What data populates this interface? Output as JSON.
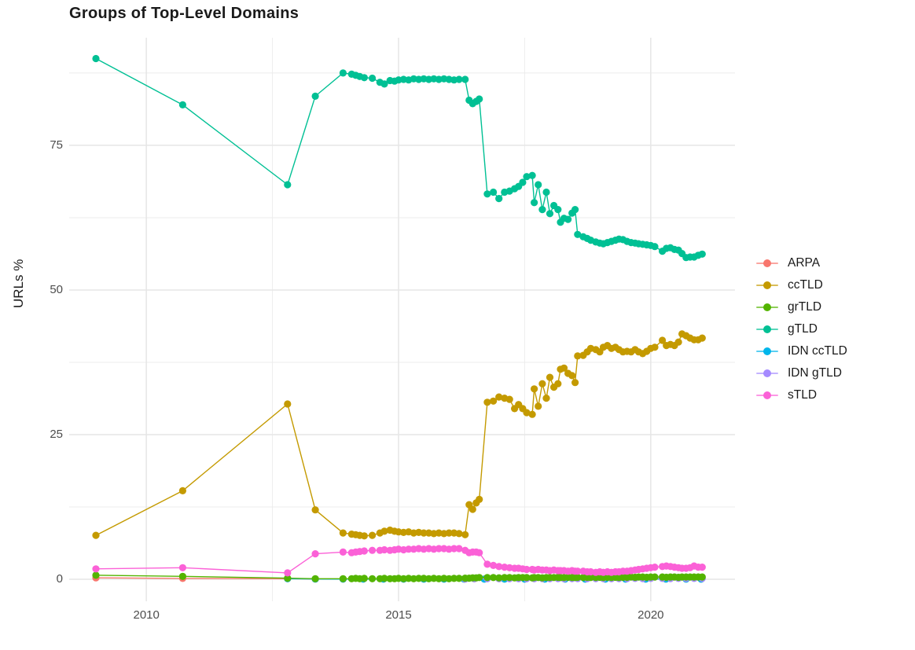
{
  "axes": {
    "x_tick_labels": [
      "2010",
      "2015",
      "2020"
    ],
    "y_tick_labels": [
      "0",
      "25",
      "50",
      "75"
    ]
  },
  "chart_data": {
    "type": "line",
    "title": "Groups of Top-Level Domains",
    "xlabel": "",
    "ylabel": "URLs %",
    "xlim": [
      2008.47,
      2021.67
    ],
    "ylim": [
      -3.8,
      93.6
    ],
    "x_major_ticks": [
      2010,
      2015,
      2020
    ],
    "x_minor_ticks": [
      2012.5,
      2017.5
    ],
    "y_major_ticks": [
      0,
      25,
      50,
      75
    ],
    "y_minor_ticks": [
      12.5,
      37.5,
      62.5,
      87.5
    ],
    "grid": true,
    "legend_position": "right",
    "grid_major_color": "#E6E6E6",
    "grid_minor_color": "#ECECEC",
    "draw_order": [
      "ARPA",
      "IDN ccTLD",
      "IDN gTLD",
      "ccTLD",
      "grTLD",
      "gTLD",
      "sTLD"
    ],
    "series": [
      {
        "name": "ARPA",
        "color": "#F8766D",
        "x": [
          2009.0,
          2010.72,
          2012.8,
          2013.35,
          2013.9,
          2014.3,
          2014.7,
          2015.1,
          2015.5,
          2015.9,
          2016.3,
          2016.7,
          2017.1,
          2017.5,
          2017.9,
          2018.3,
          2018.7,
          2019.1,
          2019.5,
          2019.9,
          2020.3,
          2020.7,
          2021.0
        ],
        "y": [
          0.25,
          0.15,
          0.1,
          0.05,
          0.05,
          0.05,
          0.05,
          0.05,
          0.05,
          0.05,
          0.05,
          0.05,
          0.05,
          0.05,
          0.05,
          0.05,
          0.05,
          0.05,
          0.05,
          0.05,
          0.05,
          0.05,
          0.05
        ]
      },
      {
        "name": "ccTLD",
        "color": "#C49A00",
        "x": [
          2009.0,
          2010.72,
          2012.8,
          2013.35,
          2013.9,
          2014.07,
          2014.15,
          2014.23,
          2014.32,
          2014.48,
          2014.63,
          2014.72,
          2014.83,
          2014.92,
          2015.0,
          2015.1,
          2015.2,
          2015.3,
          2015.4,
          2015.5,
          2015.6,
          2015.7,
          2015.8,
          2015.9,
          2016.0,
          2016.1,
          2016.2,
          2016.32,
          2016.4,
          2016.47,
          2016.54,
          2016.6,
          2016.76,
          2016.88,
          2016.99,
          2017.1,
          2017.2,
          2017.3,
          2017.38,
          2017.46,
          2017.54,
          2017.65,
          2017.69,
          2017.77,
          2017.85,
          2017.93,
          2018.0,
          2018.08,
          2018.16,
          2018.21,
          2018.28,
          2018.36,
          2018.44,
          2018.5,
          2018.55,
          2018.66,
          2018.74,
          2018.81,
          2018.91,
          2018.99,
          2019.06,
          2019.14,
          2019.22,
          2019.3,
          2019.37,
          2019.45,
          2019.53,
          2019.61,
          2019.69,
          2019.76,
          2019.84,
          2019.92,
          2020.0,
          2020.08,
          2020.23,
          2020.31,
          2020.39,
          2020.47,
          2020.55,
          2020.62,
          2020.7,
          2020.78,
          2020.86,
          2020.94,
          2021.02
        ],
        "y": [
          7.6,
          15.3,
          30.3,
          12.0,
          8.0,
          7.8,
          7.7,
          7.6,
          7.5,
          7.6,
          8.0,
          8.3,
          8.5,
          8.3,
          8.2,
          8.1,
          8.2,
          8.0,
          8.1,
          8.0,
          8.0,
          7.9,
          8.0,
          7.9,
          8.0,
          8.0,
          7.9,
          7.7,
          12.9,
          12.1,
          13.2,
          13.8,
          30.6,
          30.8,
          31.5,
          31.3,
          31.1,
          29.5,
          30.2,
          29.5,
          28.8,
          28.5,
          32.9,
          29.9,
          33.8,
          31.3,
          34.9,
          33.2,
          33.8,
          36.3,
          36.5,
          35.6,
          35.2,
          34.0,
          38.6,
          38.7,
          39.3,
          39.9,
          39.7,
          39.3,
          40.1,
          40.4,
          39.9,
          40.1,
          39.7,
          39.3,
          39.4,
          39.3,
          39.7,
          39.3,
          39.0,
          39.4,
          39.9,
          40.1,
          41.3,
          40.4,
          40.6,
          40.4,
          41.0,
          42.4,
          42.1,
          41.7,
          41.4,
          41.4,
          41.7
        ]
      },
      {
        "name": "grTLD",
        "color": "#53B400",
        "x": [
          2009.0,
          2010.72,
          2012.8,
          2013.35,
          2013.9,
          2014.07,
          2014.15,
          2014.23,
          2014.32,
          2014.48,
          2014.63,
          2014.72,
          2014.83,
          2014.92,
          2015.0,
          2015.1,
          2015.2,
          2015.3,
          2015.4,
          2015.5,
          2015.6,
          2015.7,
          2015.8,
          2015.9,
          2016.0,
          2016.1,
          2016.2,
          2016.32,
          2016.4,
          2016.47,
          2016.54,
          2016.6,
          2016.76,
          2016.88,
          2016.99,
          2017.1,
          2017.2,
          2017.3,
          2017.38,
          2017.46,
          2017.54,
          2017.65,
          2017.69,
          2017.77,
          2017.85,
          2017.93,
          2018.0,
          2018.08,
          2018.16,
          2018.21,
          2018.28,
          2018.36,
          2018.44,
          2018.5,
          2018.55,
          2018.66,
          2018.74,
          2018.81,
          2018.91,
          2018.99,
          2019.06,
          2019.14,
          2019.22,
          2019.3,
          2019.37,
          2019.45,
          2019.53,
          2019.61,
          2019.69,
          2019.76,
          2019.84,
          2019.92,
          2020.0,
          2020.08,
          2020.23,
          2020.31,
          2020.39,
          2020.47,
          2020.55,
          2020.62,
          2020.7,
          2020.78,
          2020.86,
          2020.94,
          2021.02
        ],
        "y": [
          0.7,
          0.5,
          0.2,
          0.1,
          0.1,
          0.1,
          0.15,
          0.1,
          0.15,
          0.1,
          0.1,
          0.15,
          0.1,
          0.1,
          0.15,
          0.1,
          0.15,
          0.1,
          0.15,
          0.15,
          0.1,
          0.15,
          0.1,
          0.15,
          0.1,
          0.15,
          0.15,
          0.2,
          0.2,
          0.25,
          0.25,
          0.3,
          0.3,
          0.3,
          0.25,
          0.3,
          0.3,
          0.25,
          0.3,
          0.3,
          0.3,
          0.25,
          0.3,
          0.3,
          0.25,
          0.3,
          0.3,
          0.3,
          0.35,
          0.3,
          0.3,
          0.35,
          0.3,
          0.3,
          0.35,
          0.3,
          0.35,
          0.3,
          0.3,
          0.35,
          0.3,
          0.35,
          0.3,
          0.35,
          0.3,
          0.35,
          0.35,
          0.4,
          0.35,
          0.4,
          0.4,
          0.35,
          0.4,
          0.4,
          0.4,
          0.35,
          0.4,
          0.4,
          0.35,
          0.4,
          0.4,
          0.4,
          0.4,
          0.4,
          0.4
        ]
      },
      {
        "name": "gTLD",
        "color": "#00C094",
        "x": [
          2009.0,
          2010.72,
          2012.8,
          2013.35,
          2013.9,
          2014.07,
          2014.15,
          2014.23,
          2014.32,
          2014.48,
          2014.63,
          2014.72,
          2014.83,
          2014.92,
          2015.0,
          2015.1,
          2015.2,
          2015.3,
          2015.4,
          2015.5,
          2015.6,
          2015.7,
          2015.8,
          2015.9,
          2016.0,
          2016.1,
          2016.2,
          2016.32,
          2016.4,
          2016.47,
          2016.54,
          2016.6,
          2016.76,
          2016.88,
          2016.99,
          2017.1,
          2017.2,
          2017.3,
          2017.38,
          2017.46,
          2017.54,
          2017.65,
          2017.69,
          2017.77,
          2017.85,
          2017.93,
          2018.0,
          2018.08,
          2018.16,
          2018.21,
          2018.28,
          2018.36,
          2018.44,
          2018.5,
          2018.55,
          2018.66,
          2018.74,
          2018.81,
          2018.91,
          2018.99,
          2019.06,
          2019.14,
          2019.22,
          2019.3,
          2019.37,
          2019.45,
          2019.53,
          2019.61,
          2019.69,
          2019.76,
          2019.84,
          2019.92,
          2020.0,
          2020.08,
          2020.23,
          2020.31,
          2020.39,
          2020.47,
          2020.55,
          2020.62,
          2020.7,
          2020.78,
          2020.86,
          2020.94,
          2021.02
        ],
        "y": [
          90.0,
          82.0,
          68.2,
          83.5,
          87.5,
          87.3,
          87.1,
          86.9,
          86.7,
          86.6,
          85.9,
          85.6,
          86.2,
          86.1,
          86.3,
          86.4,
          86.3,
          86.5,
          86.4,
          86.5,
          86.4,
          86.5,
          86.4,
          86.5,
          86.4,
          86.3,
          86.4,
          86.4,
          82.8,
          82.2,
          82.6,
          83.0,
          66.6,
          66.9,
          65.8,
          66.9,
          67.1,
          67.5,
          67.9,
          68.6,
          69.6,
          69.8,
          65.1,
          68.2,
          63.9,
          66.9,
          63.2,
          64.6,
          63.9,
          61.7,
          62.4,
          62.2,
          63.3,
          63.9,
          59.6,
          59.2,
          58.9,
          58.6,
          58.3,
          58.1,
          58.0,
          58.2,
          58.4,
          58.6,
          58.8,
          58.7,
          58.4,
          58.2,
          58.1,
          58.0,
          57.9,
          57.8,
          57.7,
          57.5,
          56.7,
          57.2,
          57.3,
          57.0,
          56.9,
          56.3,
          55.6,
          55.7,
          55.7,
          56.0,
          56.2
        ]
      },
      {
        "name": "IDN ccTLD",
        "color": "#00B6EB",
        "x": [
          2012.8,
          2013.35,
          2013.9,
          2014.3,
          2014.7,
          2015.1,
          2015.5,
          2015.9,
          2016.3,
          2016.7,
          2017.1,
          2017.5,
          2017.9,
          2018.3,
          2018.7,
          2019.1,
          2019.5,
          2019.9,
          2020.3,
          2020.7,
          2021.0
        ],
        "y": [
          0.1,
          0.05,
          0.03,
          0.03,
          0.03,
          0.03,
          0.03,
          0.03,
          0.03,
          0.03,
          0.03,
          0.03,
          0.03,
          0.03,
          0.03,
          0.03,
          0.03,
          0.03,
          0.03,
          0.03,
          0.03
        ]
      },
      {
        "name": "IDN gTLD",
        "color": "#A58AFF",
        "x": [
          2016.32,
          2016.5,
          2016.76,
          2016.99,
          2017.2,
          2017.38,
          2017.54,
          2017.69,
          2017.85,
          2018.0,
          2018.16,
          2018.28,
          2018.44,
          2018.55,
          2018.74,
          2018.91,
          2019.06,
          2019.22,
          2019.37,
          2019.53,
          2019.69,
          2019.84,
          2020.0,
          2020.23,
          2020.39,
          2020.55,
          2020.7,
          2020.86,
          2021.02
        ],
        "y": [
          0.05,
          0.08,
          0.1,
          0.1,
          0.1,
          0.1,
          0.1,
          0.1,
          0.12,
          0.1,
          0.12,
          0.1,
          0.12,
          0.12,
          0.1,
          0.12,
          0.12,
          0.1,
          0.12,
          0.12,
          0.15,
          0.12,
          0.15,
          0.15,
          0.12,
          0.15,
          0.15,
          0.15,
          0.15
        ]
      },
      {
        "name": "sTLD",
        "color": "#FB61D7",
        "x": [
          2009.0,
          2010.72,
          2012.8,
          2013.35,
          2013.9,
          2014.07,
          2014.15,
          2014.23,
          2014.32,
          2014.48,
          2014.63,
          2014.72,
          2014.83,
          2014.92,
          2015.0,
          2015.1,
          2015.2,
          2015.3,
          2015.4,
          2015.5,
          2015.6,
          2015.7,
          2015.8,
          2015.9,
          2016.0,
          2016.1,
          2016.2,
          2016.32,
          2016.4,
          2016.47,
          2016.54,
          2016.6,
          2016.76,
          2016.88,
          2016.99,
          2017.1,
          2017.2,
          2017.3,
          2017.38,
          2017.46,
          2017.54,
          2017.65,
          2017.69,
          2017.77,
          2017.85,
          2017.93,
          2018.0,
          2018.08,
          2018.16,
          2018.21,
          2018.28,
          2018.36,
          2018.44,
          2018.5,
          2018.55,
          2018.66,
          2018.74,
          2018.81,
          2018.91,
          2018.99,
          2019.06,
          2019.14,
          2019.22,
          2019.3,
          2019.37,
          2019.45,
          2019.53,
          2019.61,
          2019.69,
          2019.76,
          2019.84,
          2019.92,
          2020.0,
          2020.08,
          2020.23,
          2020.31,
          2020.39,
          2020.47,
          2020.55,
          2020.62,
          2020.7,
          2020.78,
          2020.86,
          2020.94,
          2021.02
        ],
        "y": [
          1.8,
          2.0,
          1.1,
          4.4,
          4.7,
          4.6,
          4.7,
          4.8,
          4.9,
          5.0,
          5.0,
          5.1,
          5.0,
          5.1,
          5.2,
          5.1,
          5.2,
          5.2,
          5.3,
          5.2,
          5.3,
          5.2,
          5.3,
          5.3,
          5.2,
          5.3,
          5.3,
          5.0,
          4.6,
          4.7,
          4.7,
          4.6,
          2.6,
          2.4,
          2.2,
          2.1,
          2.0,
          1.9,
          1.9,
          1.8,
          1.7,
          1.7,
          1.6,
          1.7,
          1.6,
          1.6,
          1.5,
          1.6,
          1.5,
          1.5,
          1.5,
          1.4,
          1.5,
          1.4,
          1.4,
          1.4,
          1.3,
          1.3,
          1.2,
          1.3,
          1.2,
          1.3,
          1.2,
          1.3,
          1.3,
          1.4,
          1.4,
          1.5,
          1.6,
          1.7,
          1.8,
          1.9,
          2.0,
          2.1,
          2.2,
          2.3,
          2.2,
          2.1,
          2.0,
          1.9,
          1.9,
          2.0,
          2.3,
          2.1,
          2.1
        ]
      }
    ]
  }
}
